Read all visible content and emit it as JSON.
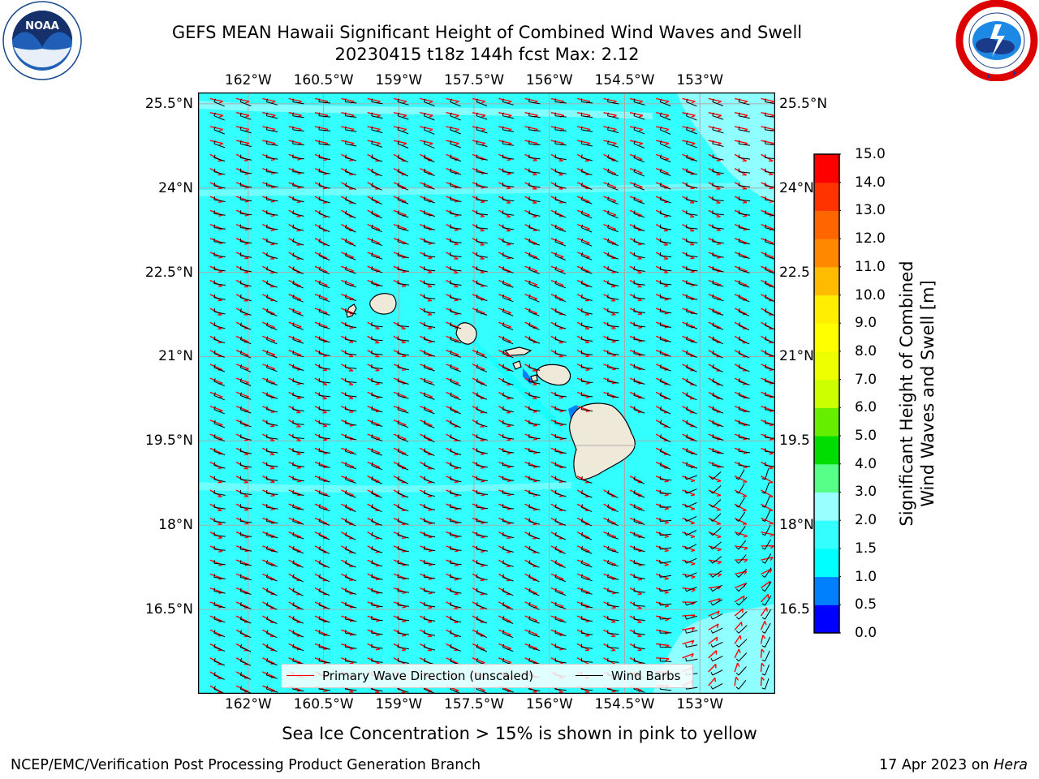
{
  "title": {
    "line1": "GEFS MEAN Hawaii Significant Height of Combined Wind Waves and Swell",
    "line2": "20230415 t18z 144h fcst   Max: 2.12"
  },
  "logos": {
    "left": {
      "name": "noaa-logo",
      "text": "NOAA",
      "ring_text": "NATIONAL OCEANIC AND ATMOSPHERIC ADMINISTRATION · U.S. DEPARTMENT OF COMMERCE"
    },
    "right": {
      "name": "nws-logo",
      "ring_text": "NATIONAL WEATHER SERVICE"
    }
  },
  "map": {
    "lon_range": [
      -163.0,
      -151.5
    ],
    "lat_range": [
      15.0,
      25.7
    ],
    "lon_ticks": [
      {
        "value": -162.0,
        "label": "162°W"
      },
      {
        "value": -160.5,
        "label": "160.5°W"
      },
      {
        "value": -159.0,
        "label": "159°W"
      },
      {
        "value": -157.5,
        "label": "157.5°W"
      },
      {
        "value": -156.0,
        "label": "156°W"
      },
      {
        "value": -154.5,
        "label": "154.5°W"
      },
      {
        "value": -153.0,
        "label": "153°W"
      }
    ],
    "lat_ticks_left": [
      {
        "value": 25.5,
        "label": "25.5°N"
      },
      {
        "value": 24.0,
        "label": "24°N"
      },
      {
        "value": 22.5,
        "label": "22.5°N"
      },
      {
        "value": 21.0,
        "label": "21°N"
      },
      {
        "value": 19.5,
        "label": "19.5°N"
      },
      {
        "value": 18.0,
        "label": "18°N"
      },
      {
        "value": 16.5,
        "label": "16.5°N"
      }
    ],
    "lat_ticks_right": [
      {
        "value": 25.5,
        "label": "25.5°N"
      },
      {
        "value": 24.0,
        "label": "24°N"
      },
      {
        "value": 22.5,
        "label": "22.5"
      },
      {
        "value": 21.0,
        "label": "21°N"
      },
      {
        "value": 19.5,
        "label": "19.5"
      },
      {
        "value": 18.0,
        "label": "18°N"
      },
      {
        "value": 16.5,
        "label": "16.5"
      }
    ],
    "ocean_color": "#33ffff",
    "light_band_color": "#99ffff",
    "land_color": "#efe9d9",
    "wave_arrow_color": "#ff0000",
    "barb_color": "#000000"
  },
  "legend": {
    "wave_label": "Primary Wave Direction (unscaled)",
    "barb_label": "Wind Barbs"
  },
  "colorbar": {
    "title_line1": "Significant Height of Combined",
    "title_line2": "Wind Waves and Swell [m]",
    "levels": [
      {
        "value": "0.0"
      },
      {
        "value": "0.5"
      },
      {
        "value": "1.0"
      },
      {
        "value": "1.5"
      },
      {
        "value": "2.0"
      },
      {
        "value": "3.0"
      },
      {
        "value": "4.0"
      },
      {
        "value": "5.0"
      },
      {
        "value": "6.0"
      },
      {
        "value": "7.0"
      },
      {
        "value": "8.0"
      },
      {
        "value": "9.0"
      },
      {
        "value": "10.0"
      },
      {
        "value": "11.0"
      },
      {
        "value": "12.0"
      },
      {
        "value": "13.0"
      },
      {
        "value": "14.0"
      },
      {
        "value": "15.0"
      }
    ],
    "colors": [
      "#0000ff",
      "#0080ff",
      "#00ffff",
      "#33ffff",
      "#99ffff",
      "#55ff88",
      "#00dd00",
      "#66ee00",
      "#ccff00",
      "#eeff00",
      "#ffff00",
      "#ffee00",
      "#ffbb00",
      "#ff8800",
      "#ff6600",
      "#ff3300",
      "#ff0000"
    ]
  },
  "caption": "Sea Ice Concentration > 15% is shown in pink to yellow",
  "footer": {
    "left": "NCEP/EMC/Verification Post Processing Product Generation Branch",
    "right_date": "17 Apr 2023 on ",
    "right_host": "Hera"
  }
}
